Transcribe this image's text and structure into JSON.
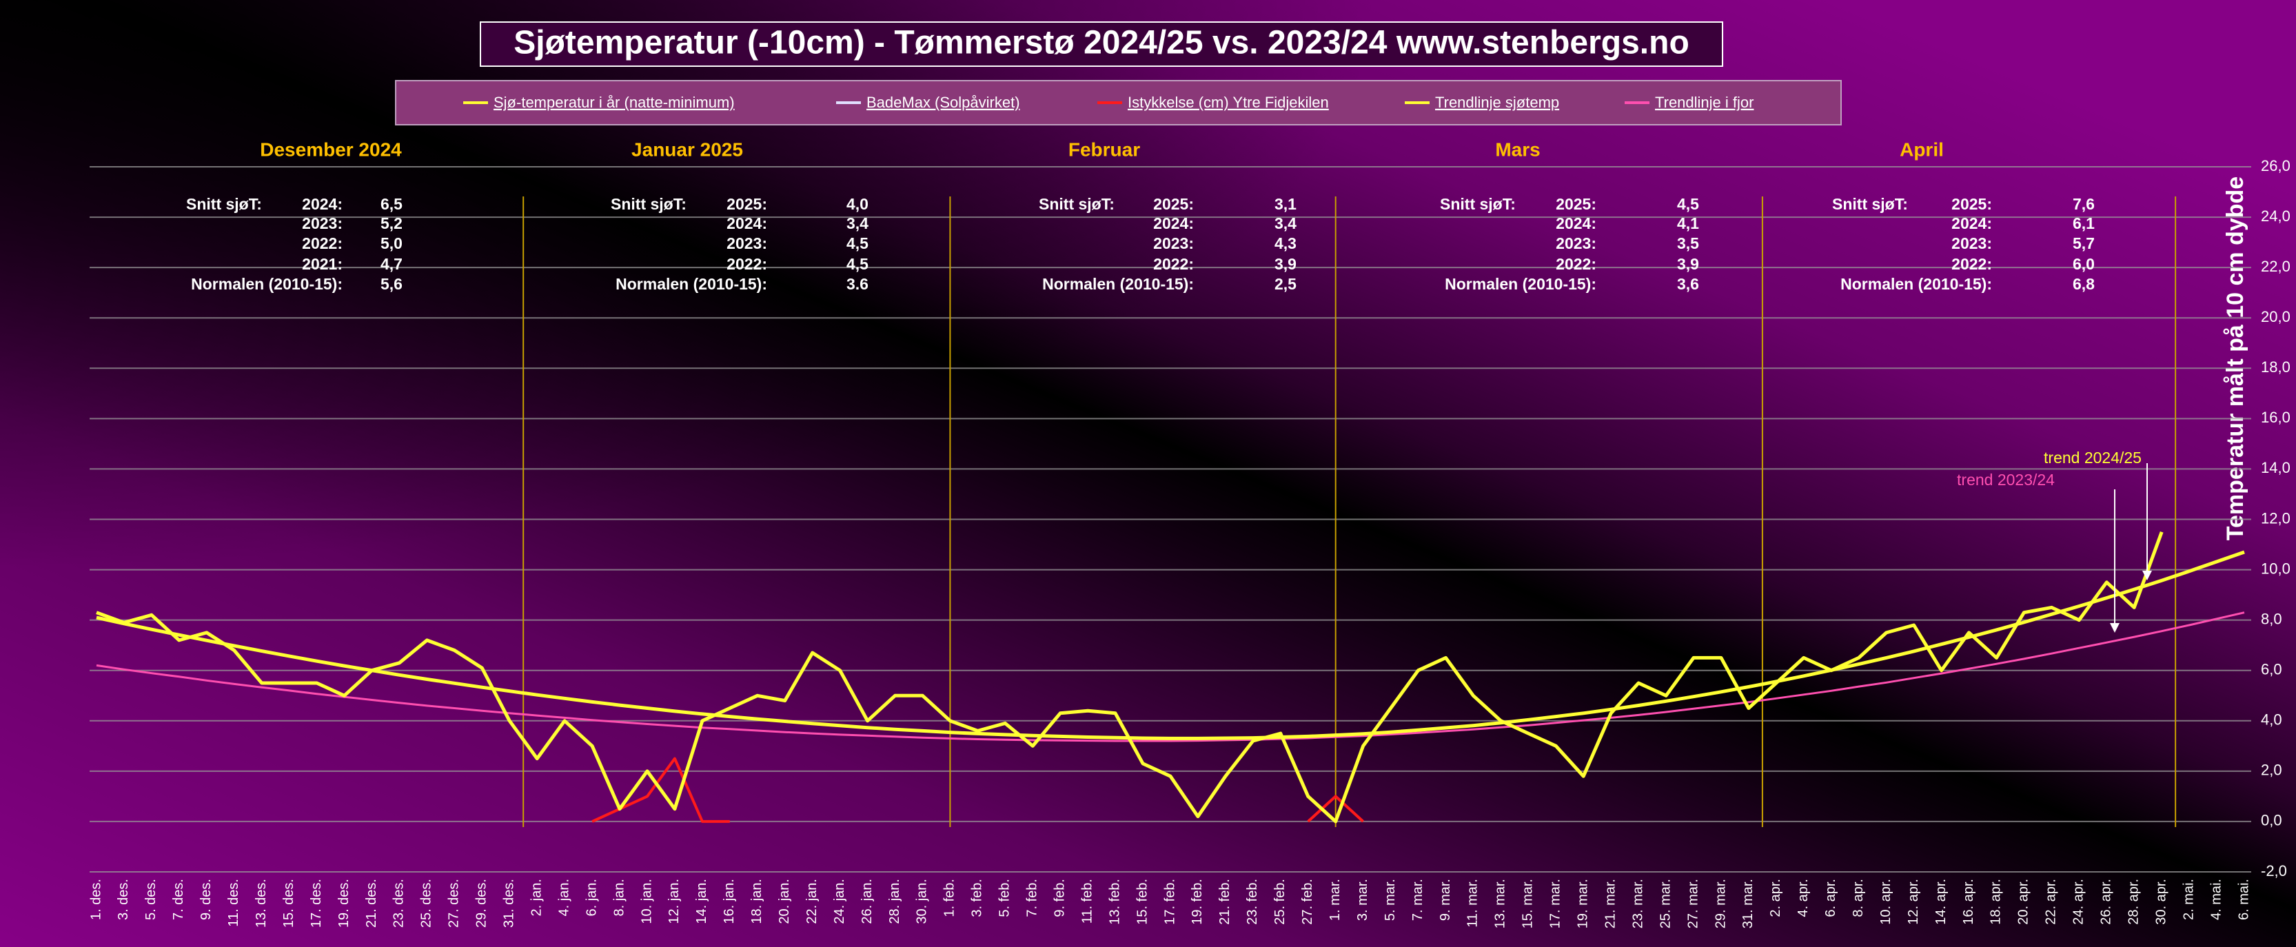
{
  "chart_data": {
    "type": "line",
    "title": "Sjøtemperatur (-10cm) - Tømmerstø 2024/25 vs. 2023/24  www.stenbergs.no",
    "y_label": "Temperatur målt på 10 cm dybde",
    "categories": [
      "1. des.",
      "3. des.",
      "5. des.",
      "7. des.",
      "9. des.",
      "11. des.",
      "13. des.",
      "15. des.",
      "17. des.",
      "19. des.",
      "21. des.",
      "23. des.",
      "25. des.",
      "27. des.",
      "29. des.",
      "31. des.",
      "2. jan.",
      "4. jan.",
      "6. jan.",
      "8. jan.",
      "10. jan.",
      "12. jan.",
      "14. jan.",
      "16. jan.",
      "18. jan.",
      "20. jan.",
      "22. jan.",
      "24. jan.",
      "26. jan.",
      "28. jan.",
      "30. jan.",
      "1. feb.",
      "3. feb.",
      "5. feb.",
      "7. feb.",
      "9. feb.",
      "11. feb.",
      "13. feb.",
      "15. feb.",
      "17. feb.",
      "19. feb.",
      "21. feb.",
      "23. feb.",
      "25. feb.",
      "27. feb.",
      "1. mar.",
      "3. mar.",
      "5. mar.",
      "7. mar.",
      "9. mar.",
      "11. mar.",
      "13. mar.",
      "15. mar.",
      "17. mar.",
      "19. mar.",
      "21. mar.",
      "23. mar.",
      "25. mar.",
      "27. mar.",
      "29. mar.",
      "31. mar.",
      "2. apr.",
      "4. apr.",
      "6. apr.",
      "8. apr.",
      "10. apr.",
      "12. apr.",
      "14. apr.",
      "16. apr.",
      "18. apr.",
      "20. apr.",
      "22. apr.",
      "24. apr.",
      "26. apr.",
      "28. apr.",
      "30. apr.",
      "2. mai.",
      "4. mai.",
      "6. mai."
    ],
    "series": [
      {
        "name": "Sjø-temperatur i år (natte-minimum)",
        "color": "#ffff33",
        "width": 5,
        "values": [
          8.3,
          7.9,
          8.2,
          7.2,
          7.5,
          6.8,
          5.5,
          5.5,
          5.5,
          5.0,
          6.0,
          6.3,
          7.2,
          6.8,
          6.1,
          4.0,
          2.5,
          4.0,
          3.0,
          0.5,
          2.0,
          0.5,
          4.0,
          4.5,
          5.0,
          4.8,
          6.7,
          6.0,
          4.0,
          5.0,
          5.0,
          4.0,
          3.6,
          3.9,
          3.0,
          4.3,
          4.4,
          4.3,
          2.3,
          1.8,
          0.2,
          1.8,
          3.2,
          3.5,
          1.0,
          0.0,
          3.0,
          4.5,
          6.0,
          6.5,
          5.0,
          4.0,
          3.5,
          3.0,
          1.8,
          4.3,
          5.5,
          5.0,
          6.5,
          6.5,
          4.5,
          5.5,
          6.5,
          6.0,
          6.5,
          7.5,
          7.8,
          6.0,
          7.5,
          6.5,
          8.3,
          8.5,
          8.0,
          9.5,
          8.5,
          11.5,
          null,
          null,
          null
        ]
      },
      {
        "name": "BadeMax (Solpåvirket)",
        "color": "#e0e0ff",
        "width": 3,
        "values": [
          null,
          null,
          null,
          null,
          null,
          null,
          null,
          null,
          null,
          null,
          null,
          null,
          null,
          null,
          null,
          null,
          null,
          null,
          null,
          null,
          null,
          null,
          null,
          null,
          null,
          null,
          null,
          null,
          null,
          null,
          null,
          null,
          null,
          null,
          null,
          null,
          null,
          null,
          null,
          null,
          null,
          null,
          null,
          null,
          null,
          null,
          null,
          null,
          null,
          null,
          null,
          null,
          null,
          null,
          null,
          null,
          null,
          null,
          null,
          null,
          null,
          null,
          null,
          null,
          null,
          null,
          null,
          null,
          null,
          null,
          null,
          null,
          null,
          null,
          null,
          null,
          null,
          null,
          null
        ]
      },
      {
        "name": "Istykkelse (cm) Ytre Fidjekilen",
        "color": "#ff1a1a",
        "width": 4,
        "values": [
          null,
          null,
          null,
          null,
          null,
          null,
          null,
          null,
          null,
          null,
          null,
          null,
          null,
          null,
          null,
          null,
          null,
          null,
          0.0,
          0.5,
          1.0,
          2.5,
          0.0,
          0.0,
          null,
          null,
          null,
          null,
          null,
          null,
          null,
          null,
          null,
          null,
          null,
          null,
          null,
          null,
          null,
          null,
          null,
          null,
          null,
          null,
          0.0,
          1.0,
          0.0,
          null,
          null,
          null,
          null,
          null,
          null,
          null,
          null,
          null,
          null,
          null,
          null,
          null,
          null,
          null,
          null,
          null,
          null,
          null,
          null,
          null,
          null,
          null,
          null,
          null,
          null,
          null,
          null,
          null,
          null,
          null,
          null
        ]
      },
      {
        "name": "Trendlinje sjøtemp",
        "color": "#ffff33",
        "width": 5,
        "values": [
          8.1,
          7.86,
          7.63,
          7.41,
          7.19,
          6.98,
          6.77,
          6.57,
          6.37,
          6.18,
          6.0,
          5.82,
          5.65,
          5.49,
          5.33,
          5.18,
          5.03,
          4.89,
          4.75,
          4.62,
          4.5,
          4.38,
          4.27,
          4.17,
          4.07,
          3.98,
          3.89,
          3.81,
          3.73,
          3.66,
          3.6,
          3.54,
          3.49,
          3.45,
          3.41,
          3.38,
          3.35,
          3.33,
          3.31,
          3.3,
          3.3,
          3.31,
          3.32,
          3.35,
          3.38,
          3.43,
          3.48,
          3.55,
          3.63,
          3.72,
          3.81,
          3.92,
          4.04,
          4.17,
          4.3,
          4.45,
          4.61,
          4.78,
          4.96,
          5.15,
          5.35,
          5.56,
          5.78,
          6.01,
          6.25,
          6.5,
          6.76,
          7.04,
          7.32,
          7.61,
          7.91,
          8.23,
          8.55,
          8.88,
          9.22,
          9.57,
          9.94,
          10.32,
          10.7
        ]
      },
      {
        "name": "Trendlinje  i fjor",
        "color": "#ff4fb0",
        "width": 3,
        "values": [
          6.2,
          6.04,
          5.89,
          5.75,
          5.6,
          5.46,
          5.33,
          5.2,
          5.07,
          4.95,
          4.83,
          4.71,
          4.6,
          4.5,
          4.4,
          4.3,
          4.21,
          4.12,
          4.03,
          3.95,
          3.87,
          3.8,
          3.73,
          3.67,
          3.61,
          3.55,
          3.5,
          3.45,
          3.41,
          3.37,
          3.33,
          3.3,
          3.27,
          3.25,
          3.23,
          3.22,
          3.21,
          3.2,
          3.2,
          3.2,
          3.21,
          3.23,
          3.25,
          3.28,
          3.31,
          3.36,
          3.4,
          3.46,
          3.52,
          3.59,
          3.66,
          3.74,
          3.82,
          3.92,
          4.02,
          4.12,
          4.23,
          4.35,
          4.48,
          4.61,
          4.74,
          4.89,
          5.04,
          5.19,
          5.36,
          5.52,
          5.7,
          5.88,
          6.07,
          6.26,
          6.46,
          6.67,
          6.89,
          7.11,
          7.33,
          7.56,
          7.8,
          8.05,
          8.3
        ]
      }
    ],
    "ylim": [
      -2,
      26
    ],
    "yticks": [
      {
        "value": -2,
        "label": "-2,0"
      },
      {
        "value": 0,
        "label": "0,0"
      },
      {
        "value": 2,
        "label": "2,0"
      },
      {
        "value": 4,
        "label": "4,0"
      },
      {
        "value": 6,
        "label": "6,0"
      },
      {
        "value": 8,
        "label": "8,0"
      },
      {
        "value": 10,
        "label": "10,0"
      },
      {
        "value": 12,
        "label": "12,0"
      },
      {
        "value": 14,
        "label": "14,0"
      },
      {
        "value": 16,
        "label": "16,0"
      },
      {
        "value": 18,
        "label": "18,0"
      },
      {
        "value": 20,
        "label": "20,0"
      },
      {
        "value": 22,
        "label": "22,0"
      },
      {
        "value": 24,
        "label": "24,0"
      },
      {
        "value": 26,
        "label": "26,0"
      }
    ],
    "grid": true,
    "months": [
      {
        "name": "Desember 2024",
        "rows": [
          {
            "label": "Snitt sjøT:",
            "year": "2024:",
            "value": "6,5"
          },
          {
            "year": "2023:",
            "value": "5,2"
          },
          {
            "year": "2022:",
            "value": "5,0"
          },
          {
            "year": "2021:",
            "value": "4,7"
          },
          {
            "label": "Normalen (2010-15):",
            "value": "5,6"
          }
        ]
      },
      {
        "name": "Januar 2025",
        "rows": [
          {
            "label": "Snitt sjøT:",
            "year": "2025:",
            "value": "4,0"
          },
          {
            "year": "2024:",
            "value": "3,4"
          },
          {
            "year": "2023:",
            "value": "4,5"
          },
          {
            "year": "2022:",
            "value": "4,5"
          },
          {
            "label": "Normalen (2010-15):",
            "value": "3.6"
          }
        ]
      },
      {
        "name": "Februar",
        "rows": [
          {
            "label": "Snitt sjøT:",
            "year": "2025:",
            "value": "3,1"
          },
          {
            "year": "2024:",
            "value": "3,4"
          },
          {
            "year": "2023:",
            "value": "4,3"
          },
          {
            "year": "2022:",
            "value": "3,9"
          },
          {
            "label": "Normalen (2010-15):",
            "value": "2,5"
          }
        ]
      },
      {
        "name": "Mars",
        "rows": [
          {
            "label": "Snitt sjøT:",
            "year": "2025:",
            "value": "4,5"
          },
          {
            "year": "2024:",
            "value": "4,1"
          },
          {
            "year": "2023:",
            "value": "3,5"
          },
          {
            "year": "2022:",
            "value": "3,9"
          },
          {
            "label": "Normalen (2010-15):",
            "value": "3,6"
          }
        ]
      },
      {
        "name": "April",
        "rows": [
          {
            "label": "Snitt sjøT:",
            "year": "2025:",
            "value": "7,6"
          },
          {
            "year": "2024:",
            "value": "6,1"
          },
          {
            "year": "2023:",
            "value": "5,7"
          },
          {
            "year": "2022:",
            "value": "6,0"
          },
          {
            "label": "Normalen (2010-15):",
            "value": "6,8"
          }
        ]
      }
    ],
    "annotations": [
      {
        "text": "trend 2024/25",
        "color": "#ffff33"
      },
      {
        "text": "trend 2023/24",
        "color": "#ff4fb0"
      }
    ]
  }
}
